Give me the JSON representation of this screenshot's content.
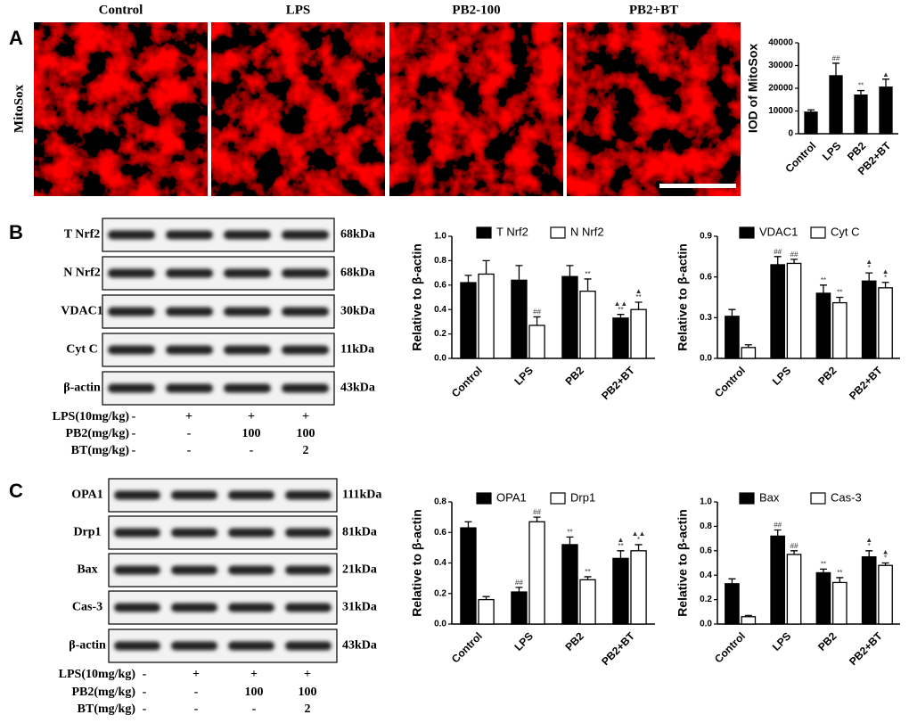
{
  "panel_labels": [
    "A",
    "B",
    "C"
  ],
  "images": {
    "row_label": "MitoSox",
    "columns": [
      "Control",
      "LPS",
      "PB2-100",
      "PB2+BT"
    ]
  },
  "blots": [
    {
      "bands": [
        {
          "label": "T Nrf2",
          "size": "68kDa"
        },
        {
          "label": "N Nrf2",
          "size": "68kDa"
        },
        {
          "label": "VDAC1",
          "size": "30kDa"
        },
        {
          "label": "Cyt C",
          "size": "11kDa"
        },
        {
          "label": "β-actin",
          "size": "43kDa"
        }
      ],
      "treatments": [
        {
          "label": "LPS(10mg/kg)",
          "cells": [
            "-",
            "+",
            "+",
            "+"
          ]
        },
        {
          "label": "PB2(mg/kg)",
          "cells": [
            "-",
            "-",
            "100",
            "100"
          ]
        },
        {
          "label": "BT(mg/kg)",
          "cells": [
            "-",
            "-",
            "-",
            "2"
          ]
        }
      ]
    },
    {
      "bands": [
        {
          "label": "OPA1",
          "size": "111kDa"
        },
        {
          "label": "Drp1",
          "size": "81kDa"
        },
        {
          "label": "Bax",
          "size": "21kDa"
        },
        {
          "label": "Cas-3",
          "size": "31kDa"
        },
        {
          "label": "β-actin",
          "size": "43kDa"
        }
      ],
      "treatments": [
        {
          "label": "LPS(10mg/kg)",
          "cells": [
            "-",
            "+",
            "+",
            "+"
          ]
        },
        {
          "label": "PB2(mg/kg)",
          "cells": [
            "-",
            "-",
            "100",
            "100"
          ]
        },
        {
          "label": "BT(mg/kg)",
          "cells": [
            "-",
            "-",
            "-",
            "2"
          ]
        }
      ]
    }
  ],
  "chart_data": [
    {
      "type": "bar",
      "y_label": "IOD of MitoSox",
      "categories": [
        "Control",
        "LPS",
        "PB2",
        "PB2+BT"
      ],
      "series": [
        {
          "color": "#000000",
          "values": [
            9500,
            25500,
            17000,
            20500
          ],
          "errors": [
            1000,
            5500,
            2000,
            3500
          ],
          "annotations": [
            null,
            [
              "##"
            ],
            [
              "**"
            ],
            [
              "▲"
            ]
          ]
        }
      ],
      "ylim": [
        0,
        40000
      ],
      "yticks": [
        0,
        10000,
        20000,
        30000,
        40000
      ]
    },
    {
      "type": "bar",
      "y_label": "Relative to β-actin",
      "categories": [
        "Control",
        "LPS",
        "PB2",
        "PB2+BT"
      ],
      "series": [
        {
          "name": "T Nrf2",
          "color": "#000000",
          "values": [
            0.62,
            0.64,
            0.67,
            0.33
          ],
          "errors": [
            0.06,
            0.12,
            0.09,
            0.03
          ],
          "annotations": [
            null,
            null,
            null,
            [
              "▲▲",
              "**"
            ]
          ]
        },
        {
          "name": "N Nrf2",
          "color": "#ffffff",
          "values": [
            0.69,
            0.27,
            0.55,
            0.4
          ],
          "errors": [
            0.11,
            0.07,
            0.1,
            0.06
          ],
          "annotations": [
            null,
            [
              "##"
            ],
            [
              "**"
            ],
            [
              "▲",
              "**"
            ]
          ]
        }
      ],
      "ylim": [
        0,
        1
      ],
      "yticks": [
        {
          "value": 0,
          "label": "0.0"
        },
        0.2,
        0.4,
        0.6,
        0.8,
        {
          "value": 1,
          "label": "1.0"
        }
      ]
    },
    {
      "type": "bar",
      "y_label": "Relative to β-actin",
      "categories": [
        "Control",
        "LPS",
        "PB2",
        "PB2+BT"
      ],
      "series": [
        {
          "name": "VDAC1",
          "color": "#000000",
          "values": [
            0.31,
            0.69,
            0.48,
            0.57
          ],
          "errors": [
            0.05,
            0.06,
            0.06,
            0.06
          ],
          "annotations": [
            null,
            [
              "##"
            ],
            [
              "**"
            ],
            [
              "▲",
              "*"
            ]
          ]
        },
        {
          "name": "Cyt C",
          "color": "#ffffff",
          "values": [
            0.08,
            0.7,
            0.41,
            0.52
          ],
          "errors": [
            0.02,
            0.03,
            0.04,
            0.04
          ],
          "annotations": [
            null,
            [
              "##"
            ],
            [
              "**"
            ],
            [
              "▲",
              "*"
            ]
          ]
        }
      ],
      "ylim": [
        0,
        0.9
      ],
      "yticks": [
        {
          "value": 0,
          "label": "0.0"
        },
        0.3,
        0.6,
        0.9
      ]
    },
    {
      "type": "bar",
      "y_label": "Relative to β-actin",
      "categories": [
        "Control",
        "LPS",
        "PB2",
        "PB2+BT"
      ],
      "series": [
        {
          "name": "OPA1",
          "color": "#000000",
          "values": [
            0.63,
            0.21,
            0.52,
            0.43
          ],
          "errors": [
            0.04,
            0.03,
            0.05,
            0.05
          ],
          "annotations": [
            null,
            [
              "##"
            ],
            [
              "**"
            ],
            [
              "▲",
              "**"
            ]
          ]
        },
        {
          "name": "Drp1",
          "color": "#ffffff",
          "values": [
            0.16,
            0.67,
            0.29,
            0.48
          ],
          "errors": [
            0.02,
            0.03,
            0.02,
            0.04
          ],
          "annotations": [
            null,
            [
              "##"
            ],
            [
              "**"
            ],
            [
              "▲▲",
              "*"
            ]
          ]
        }
      ],
      "ylim": [
        0,
        0.8
      ],
      "yticks": [
        {
          "value": 0,
          "label": "0.0"
        },
        0.2,
        0.4,
        0.6,
        0.8
      ]
    },
    {
      "type": "bar",
      "y_label": "Relative to β-actin",
      "categories": [
        "Control",
        "LPS",
        "PB2",
        "PB2+BT"
      ],
      "series": [
        {
          "name": "Bax",
          "color": "#000000",
          "values": [
            0.33,
            0.72,
            0.42,
            0.55
          ],
          "errors": [
            0.04,
            0.05,
            0.03,
            0.05
          ],
          "annotations": [
            null,
            [
              "##"
            ],
            [
              "**"
            ],
            [
              "▲",
              "*"
            ]
          ]
        },
        {
          "name": "Cas-3",
          "color": "#ffffff",
          "values": [
            0.06,
            0.57,
            0.34,
            0.48
          ],
          "errors": [
            0.01,
            0.03,
            0.04,
            0.02
          ],
          "annotations": [
            null,
            [
              "##"
            ],
            [
              "**"
            ],
            [
              "▲",
              "*"
            ]
          ]
        }
      ],
      "ylim": [
        0,
        1
      ],
      "yticks": [
        {
          "value": 0,
          "label": "0.0"
        },
        0.2,
        0.4,
        0.6,
        0.8,
        {
          "value": 1,
          "label": "1.0"
        }
      ]
    }
  ]
}
